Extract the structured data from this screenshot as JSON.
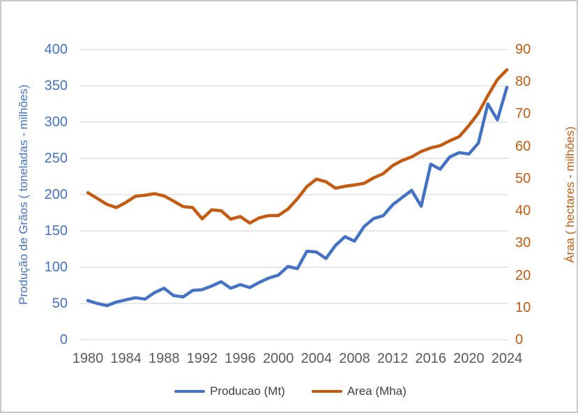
{
  "window": {
    "background_color": "#ffffff",
    "border_color": "#c9c9c9"
  },
  "chart_data": {
    "type": "line",
    "x": [
      1980,
      1981,
      1982,
      1983,
      1984,
      1985,
      1986,
      1987,
      1988,
      1989,
      1990,
      1991,
      1992,
      1993,
      1994,
      1995,
      1996,
      1997,
      1998,
      1999,
      2000,
      2001,
      2002,
      2003,
      2004,
      2005,
      2006,
      2007,
      2008,
      2009,
      2010,
      2011,
      2012,
      2013,
      2014,
      2015,
      2016,
      2017,
      2018,
      2019,
      2020,
      2021,
      2022,
      2023,
      2024
    ],
    "series": [
      {
        "name": "Producao (Mt)",
        "color": "#4472C4",
        "axis": "left",
        "values": [
          54,
          50,
          47,
          52,
          55,
          58,
          56,
          65,
          71,
          61,
          59,
          68,
          69,
          74,
          80,
          71,
          76,
          72,
          79,
          85,
          89,
          101,
          98,
          122,
          121,
          112,
          130,
          142,
          136,
          156,
          167,
          171,
          186,
          196,
          206,
          184,
          242,
          235,
          252,
          258,
          256,
          271,
          325,
          303,
          348
        ]
      },
      {
        "name": "Area (Mha)",
        "color": "#C55A11",
        "axis": "right",
        "values": [
          45.6,
          43.8,
          42,
          41,
          42.6,
          44.5,
          44.8,
          45.3,
          44.6,
          43,
          41.3,
          41,
          37.5,
          40.3,
          40,
          37.4,
          38.2,
          36.2,
          37.8,
          38.5,
          38.5,
          40.5,
          43.7,
          47.5,
          49.8,
          49,
          47,
          47.6,
          48,
          48.5,
          50.2,
          51.5,
          54,
          55.6,
          56.7,
          58.4,
          59.5,
          60.2,
          61.7,
          63,
          66.4,
          70.3,
          75.7,
          80.7,
          83.7
        ]
      }
    ],
    "left_axis": {
      "title": "Produção de Grãos ( toneladas - milhões)",
      "min": 0,
      "max": 400,
      "step": 50,
      "ticks": [
        0,
        50,
        100,
        150,
        200,
        250,
        300,
        350,
        400
      ],
      "color": "#4472C4"
    },
    "right_axis": {
      "title": "Áraa ( hectares - milhões)",
      "min": 0,
      "max": 90,
      "step": 10,
      "ticks": [
        0,
        10,
        20,
        30,
        40,
        50,
        60,
        70,
        80,
        90
      ],
      "color": "#C55A11"
    },
    "x_axis": {
      "ticks": [
        1980,
        1984,
        1988,
        1992,
        1996,
        2000,
        2004,
        2008,
        2012,
        2016,
        2020,
        2024
      ],
      "color": "#595959"
    },
    "grid": {
      "color": "#D9D9D9",
      "horizontal": true,
      "vertical": false
    },
    "legend": {
      "position": "bottom"
    }
  }
}
